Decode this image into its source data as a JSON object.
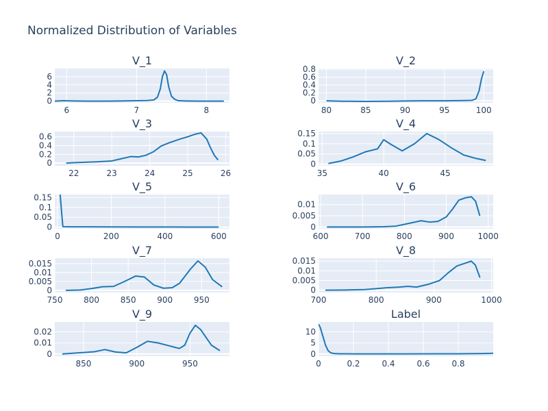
{
  "title": "Normalized Distribution of Variables",
  "colors": {
    "line": "#1f77b4",
    "plot_bg": "#e5ecf6",
    "grid": "#ffffff",
    "text": "#2a3f5f"
  },
  "chart_data": [
    {
      "type": "line",
      "title": "V_1",
      "xlim": [
        5.83,
        8.33
      ],
      "ylim": [
        -0.4,
        8.0
      ],
      "x_ticks": [
        6,
        7,
        8
      ],
      "y_ticks": [
        0,
        2,
        4,
        6
      ],
      "x": [
        5.83,
        5.95,
        6.1,
        6.3,
        6.6,
        6.8,
        7.0,
        7.15,
        7.25,
        7.3,
        7.34,
        7.37,
        7.4,
        7.43,
        7.46,
        7.5,
        7.55,
        7.6,
        7.7,
        7.9,
        8.1,
        8.25
      ],
      "y": [
        0.0,
        0.1,
        0.05,
        0.0,
        0.0,
        0.05,
        0.1,
        0.15,
        0.3,
        1.0,
        3.0,
        6.0,
        7.4,
        6.5,
        3.5,
        1.2,
        0.4,
        0.1,
        0.05,
        0.0,
        0.0,
        0.0
      ]
    },
    {
      "type": "line",
      "title": "V_2",
      "xlim": [
        79.0,
        101.2
      ],
      "ylim": [
        -0.05,
        0.82
      ],
      "x_ticks": [
        80,
        85,
        90,
        95,
        100
      ],
      "y_ticks": [
        0,
        0.2,
        0.4,
        0.6,
        0.8
      ],
      "x": [
        80,
        82,
        85,
        88,
        90,
        92,
        95,
        97,
        98.5,
        99,
        99.4,
        99.7,
        100
      ],
      "y": [
        0.0,
        -0.01,
        -0.015,
        -0.01,
        -0.005,
        0.0,
        0.0,
        0.005,
        0.01,
        0.05,
        0.25,
        0.55,
        0.75
      ]
    },
    {
      "type": "line",
      "title": "V_3",
      "xlim": [
        21.5,
        26.1
      ],
      "ylim": [
        -0.06,
        0.72
      ],
      "x_ticks": [
        22,
        23,
        24,
        25,
        26
      ],
      "y_ticks": [
        0,
        0.2,
        0.4,
        0.6
      ],
      "x": [
        21.8,
        22.0,
        22.3,
        22.6,
        23.0,
        23.2,
        23.5,
        23.7,
        23.9,
        24.1,
        24.3,
        24.5,
        24.8,
        25.0,
        25.2,
        25.35,
        25.5,
        25.6,
        25.7,
        25.8
      ],
      "y": [
        0.0,
        0.01,
        0.02,
        0.03,
        0.05,
        0.09,
        0.15,
        0.14,
        0.18,
        0.26,
        0.39,
        0.46,
        0.55,
        0.6,
        0.66,
        0.69,
        0.55,
        0.35,
        0.18,
        0.07
      ]
    },
    {
      "type": "line",
      "title": "V_4",
      "xlim": [
        34.7,
        48.9
      ],
      "ylim": [
        -0.008,
        0.16
      ],
      "x_ticks": [
        35,
        40,
        45
      ],
      "y_ticks": [
        0,
        0.05,
        0.1,
        0.15
      ],
      "x": [
        35.5,
        36.5,
        37.5,
        38.5,
        39.5,
        40,
        40.5,
        41.5,
        42.5,
        43.5,
        44.5,
        45.5,
        46.5,
        47.5,
        48.3
      ],
      "y": [
        0.003,
        0.015,
        0.035,
        0.06,
        0.075,
        0.12,
        0.1,
        0.065,
        0.1,
        0.15,
        0.12,
        0.08,
        0.045,
        0.028,
        0.018
      ]
    },
    {
      "type": "line",
      "title": "V_5",
      "xlim": [
        -10,
        640
      ],
      "ylim": [
        -0.008,
        0.165
      ],
      "x_ticks": [
        0,
        200,
        400,
        600
      ],
      "y_ticks": [
        0,
        0.05,
        0.1,
        0.15
      ],
      "x": [
        10,
        15,
        20,
        50,
        100,
        200,
        300,
        400,
        500,
        600
      ],
      "y": [
        0.165,
        0.08,
        0.003,
        0.002,
        0.002,
        0.0015,
        0.0012,
        0.001,
        0.0008,
        0.0006
      ]
    },
    {
      "type": "line",
      "title": "V_6",
      "xlim": [
        595,
        1012
      ],
      "ylim": [
        -0.0008,
        0.0145
      ],
      "x_ticks": [
        600,
        700,
        800,
        900,
        1000
      ],
      "y_ticks": [
        0,
        0.005,
        0.01
      ],
      "x": [
        615,
        650,
        700,
        750,
        780,
        800,
        820,
        840,
        860,
        880,
        900,
        915,
        930,
        945,
        960,
        970,
        980
      ],
      "y": [
        0.0,
        0.0,
        0.0,
        0.0001,
        0.0004,
        0.0012,
        0.002,
        0.0028,
        0.0022,
        0.0025,
        0.0045,
        0.008,
        0.012,
        0.013,
        0.0135,
        0.0115,
        0.005
      ]
    },
    {
      "type": "line",
      "title": "V_7",
      "xlim": [
        750,
        988
      ],
      "ylim": [
        -0.0012,
        0.018
      ],
      "x_ticks": [
        750,
        800,
        850,
        900,
        950
      ],
      "y_ticks": [
        0,
        0.005,
        0.01,
        0.015
      ],
      "x": [
        765,
        785,
        800,
        815,
        830,
        845,
        860,
        872,
        885,
        898,
        910,
        920,
        935,
        945,
        955,
        965,
        978
      ],
      "y": [
        0.0,
        0.0002,
        0.001,
        0.002,
        0.0022,
        0.005,
        0.008,
        0.0075,
        0.003,
        0.0012,
        0.0015,
        0.004,
        0.012,
        0.0165,
        0.013,
        0.006,
        0.002
      ]
    },
    {
      "type": "line",
      "title": "V_8",
      "xlim": [
        700,
        1003
      ],
      "ylim": [
        -0.0012,
        0.0165
      ],
      "x_ticks": [
        700,
        800,
        900,
        1000
      ],
      "y_ticks": [
        0,
        0.005,
        0.01,
        0.015
      ],
      "x": [
        712,
        750,
        780,
        800,
        820,
        840,
        855,
        870,
        890,
        910,
        925,
        940,
        955,
        965,
        972,
        980
      ],
      "y": [
        0.0,
        0.0001,
        0.0003,
        0.0008,
        0.0013,
        0.0016,
        0.002,
        0.0016,
        0.003,
        0.005,
        0.009,
        0.0125,
        0.014,
        0.015,
        0.013,
        0.0065
      ]
    },
    {
      "type": "line",
      "title": "V_9",
      "xlim": [
        823,
        987
      ],
      "ylim": [
        -0.002,
        0.029
      ],
      "x_ticks": [
        850,
        900,
        950
      ],
      "y_ticks": [
        0,
        0.01,
        0.02
      ],
      "x": [
        830,
        845,
        860,
        870,
        880,
        890,
        900,
        910,
        920,
        930,
        940,
        945,
        950,
        955,
        960,
        970,
        978
      ],
      "y": [
        0.0,
        0.001,
        0.002,
        0.004,
        0.0018,
        0.001,
        0.006,
        0.0115,
        0.01,
        0.0075,
        0.005,
        0.008,
        0.019,
        0.026,
        0.022,
        0.008,
        0.003
      ]
    },
    {
      "type": "line",
      "title": "Label",
      "xlim": [
        0,
        1.0
      ],
      "ylim": [
        -1.0,
        14.5
      ],
      "x_ticks": [
        0,
        0.2,
        0.4,
        0.6,
        0.8
      ],
      "y_ticks": [
        0,
        5,
        10
      ],
      "x": [
        0,
        0.01,
        0.025,
        0.04,
        0.055,
        0.07,
        0.09,
        0.12,
        0.2,
        0.5,
        0.8,
        0.95,
        1.0
      ],
      "y": [
        13.5,
        12.0,
        8.0,
        4.0,
        1.5,
        0.5,
        0.2,
        0.1,
        0.05,
        0.05,
        0.1,
        0.2,
        0.3
      ]
    }
  ]
}
